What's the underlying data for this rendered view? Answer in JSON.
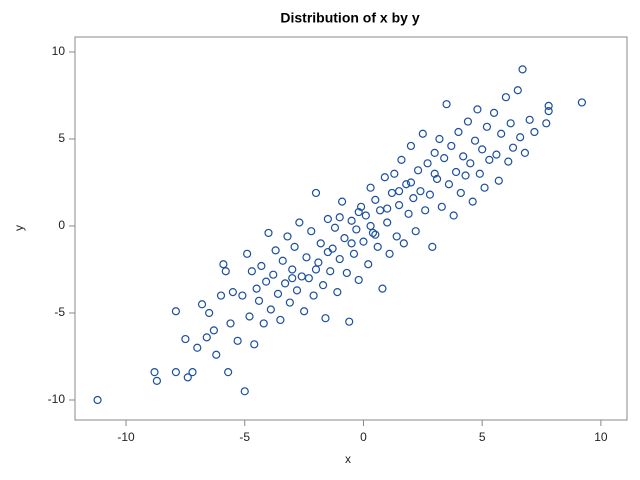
{
  "chart_data": {
    "type": "scatter",
    "title": "Distribution of x by y",
    "x_label": "x",
    "y_label": "y",
    "color": "#1c4fa0",
    "xlim": [
      -12.15,
      11.1
    ],
    "ylim": [
      -11.15,
      10.86
    ],
    "xticks": [
      -10,
      -5,
      0,
      5,
      10
    ],
    "yticks": [
      -10,
      -5,
      0,
      5,
      10
    ],
    "x": [
      -11.2,
      -8.8,
      -8.7,
      -7.9,
      -7.9,
      -7.5,
      -7.4,
      -7.2,
      -7.0,
      -6.8,
      -6.6,
      -6.5,
      -6.3,
      -6.2,
      -6.0,
      -5.9,
      -5.8,
      -5.7,
      -5.6,
      -5.5,
      -5.3,
      -5.1,
      -5.0,
      -4.9,
      -4.8,
      -4.7,
      -4.6,
      -4.5,
      -4.4,
      -4.3,
      -4.2,
      -4.1,
      -4.0,
      -3.9,
      -3.8,
      -3.7,
      -3.6,
      -3.5,
      -3.4,
      -3.3,
      -3.2,
      -3.1,
      -3.0,
      -2.9,
      -2.8,
      -2.7,
      -2.6,
      -2.5,
      -2.4,
      -2.3,
      -2.2,
      -2.1,
      -2.0,
      -1.9,
      -1.8,
      -1.7,
      -1.6,
      -1.5,
      -1.4,
      -1.3,
      -1.2,
      -1.1,
      -1.0,
      -0.9,
      -0.8,
      -0.7,
      -0.6,
      -0.5,
      -0.4,
      -0.3,
      -0.2,
      -0.1,
      0.0,
      0.1,
      0.2,
      0.3,
      0.4,
      0.5,
      0.6,
      0.7,
      0.8,
      0.9,
      1.0,
      1.1,
      1.2,
      1.3,
      1.4,
      1.5,
      1.6,
      1.7,
      1.8,
      1.9,
      2.0,
      2.1,
      2.2,
      2.3,
      2.4,
      2.5,
      2.6,
      2.7,
      2.8,
      2.9,
      3.0,
      3.1,
      3.2,
      3.3,
      3.4,
      3.5,
      3.6,
      3.7,
      3.8,
      3.9,
      4.0,
      4.1,
      4.2,
      4.3,
      4.4,
      4.5,
      4.6,
      4.7,
      4.8,
      4.9,
      5.0,
      5.1,
      5.2,
      5.3,
      5.5,
      5.6,
      5.7,
      5.8,
      6.0,
      6.1,
      6.2,
      6.3,
      6.5,
      6.6,
      6.7,
      6.8,
      7.0,
      7.2,
      7.7,
      7.8,
      7.8,
      9.2,
      -0.5,
      0.3,
      -1.0,
      1.0,
      -2.0,
      2.0,
      -3.0,
      3.0,
      0.5,
      -0.2,
      1.5,
      -1.5
    ],
    "values": [
      -10.0,
      -8.4,
      -8.9,
      -4.9,
      -8.4,
      -6.5,
      -8.7,
      -8.4,
      -7.0,
      -4.5,
      -6.4,
      -5.0,
      -6.0,
      -7.4,
      -4.0,
      -2.2,
      -2.6,
      -8.4,
      -5.6,
      -3.8,
      -6.6,
      -4.0,
      -9.5,
      -1.6,
      -5.2,
      -2.6,
      -6.8,
      -3.6,
      -4.3,
      -2.3,
      -5.6,
      -3.2,
      -0.4,
      -4.8,
      -2.8,
      -1.4,
      -3.9,
      -5.4,
      -2.0,
      -3.3,
      -0.6,
      -4.4,
      -2.5,
      -1.2,
      -3.7,
      0.2,
      -2.9,
      -4.9,
      -1.8,
      -3.0,
      -0.3,
      -4.0,
      1.9,
      -2.1,
      -1.0,
      -3.4,
      -5.3,
      0.4,
      -2.6,
      -1.3,
      -0.1,
      -3.8,
      -1.9,
      1.4,
      -0.7,
      -2.7,
      -5.5,
      0.3,
      -1.6,
      -0.2,
      -3.1,
      1.1,
      -0.9,
      0.6,
      -2.2,
      2.2,
      -0.4,
      1.5,
      -1.2,
      0.9,
      -3.6,
      2.8,
      0.2,
      -1.6,
      1.9,
      3.0,
      -0.6,
      1.2,
      3.8,
      -1.0,
      2.4,
      0.7,
      4.6,
      1.6,
      -0.3,
      3.2,
      2.0,
      5.3,
      0.9,
      3.6,
      1.8,
      -1.2,
      4.2,
      2.7,
      5.0,
      1.1,
      3.9,
      7.0,
      2.4,
      4.6,
      0.6,
      3.1,
      5.4,
      1.9,
      4.0,
      2.9,
      6.0,
      3.6,
      1.4,
      4.9,
      6.7,
      3.0,
      4.4,
      2.2,
      5.7,
      3.8,
      6.5,
      4.1,
      2.6,
      5.3,
      7.4,
      3.7,
      5.9,
      4.5,
      7.8,
      5.1,
      9.0,
      4.2,
      6.1,
      5.4,
      5.9,
      6.6,
      6.9,
      7.1,
      -1.0,
      0.0,
      0.5,
      1.0,
      -2.5,
      2.5,
      -3.0,
      3.0,
      -0.5,
      0.8,
      2.0,
      -1.5
    ]
  }
}
